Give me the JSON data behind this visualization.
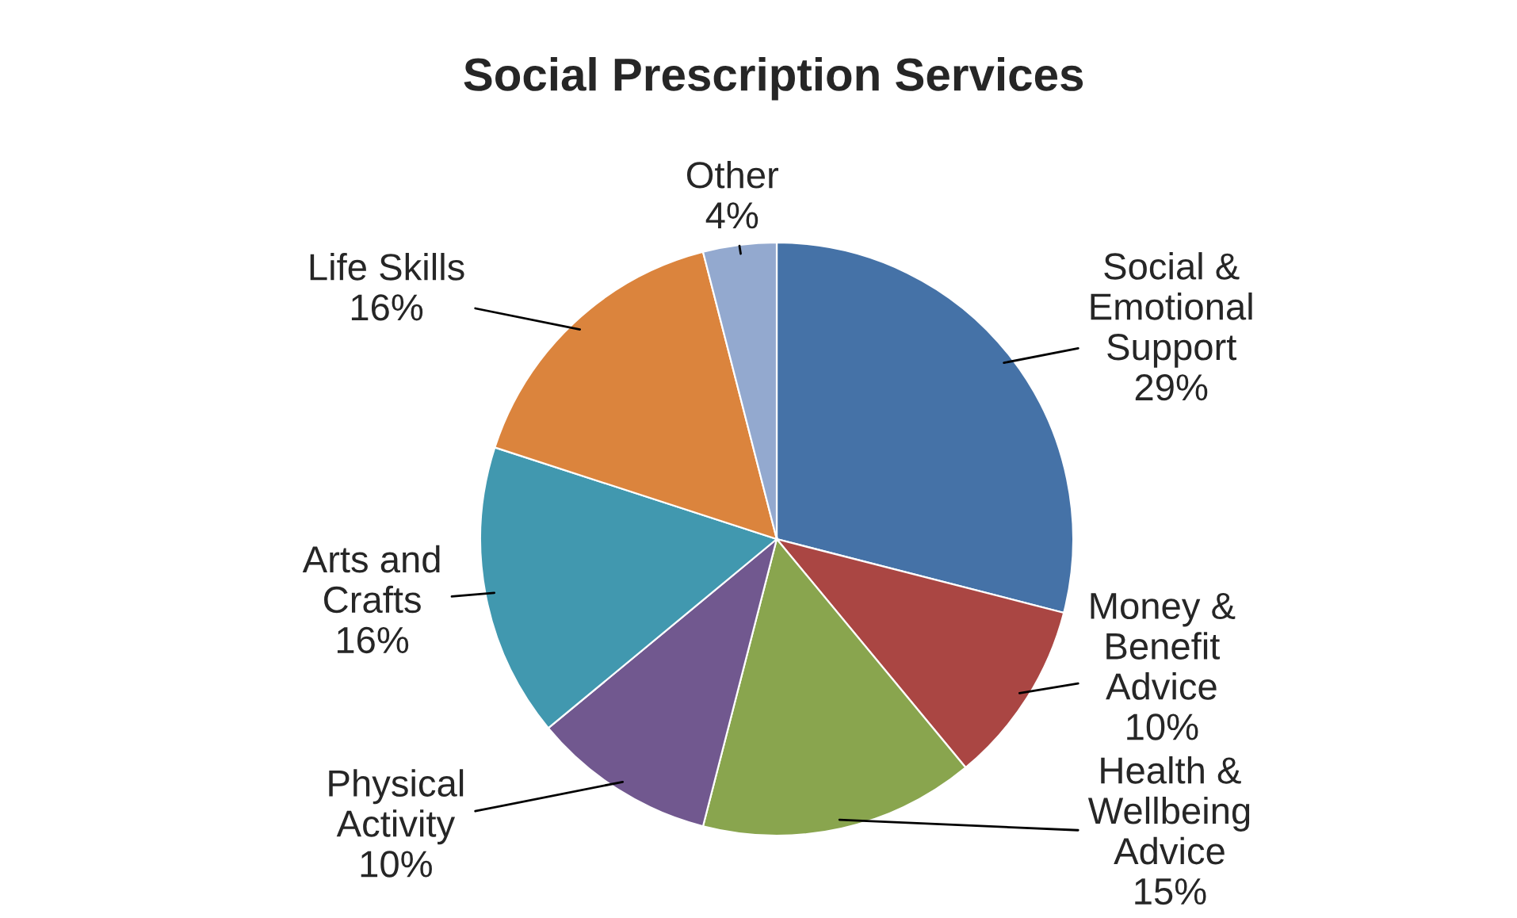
{
  "chart_data": {
    "type": "pie",
    "title": "Social Prescription Services",
    "categories": [
      "Social &\nEmotional\nSupport",
      "Money &\nBenefit\nAdvice",
      "Health &\nWellbeing\nAdvice",
      "Physical\nActivity",
      "Arts and\nCrafts",
      "Life Skills",
      "Other"
    ],
    "values": [
      29,
      10,
      15,
      10,
      16,
      16,
      4
    ],
    "value_labels": [
      "29%",
      "10%",
      "15%",
      "10%",
      "16%",
      "16%",
      "4%"
    ],
    "colors": [
      "#4572a7",
      "#aa4643",
      "#89a54e",
      "#71588f",
      "#4198af",
      "#db843d",
      "#93a9cf"
    ]
  }
}
